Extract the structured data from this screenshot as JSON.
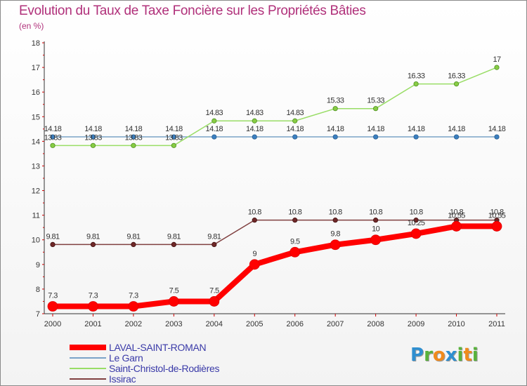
{
  "logo": {
    "text": "Proxiti",
    "letters": [
      {
        "ch": "P",
        "color": "#2f8fd0"
      },
      {
        "ch": "r",
        "color": "#58b23b"
      },
      {
        "ch": "o",
        "color": "#f08a1c"
      },
      {
        "ch": "x",
        "color": "#2f8fd0"
      },
      {
        "ch": "i",
        "color": "#58b23b"
      },
      {
        "ch": "t",
        "color": "#f08a1c"
      },
      {
        "ch": "i",
        "color": "#58b23b"
      }
    ]
  },
  "chart_data": {
    "type": "line",
    "title": "Evolution du Taux de Taxe Foncière sur les Propriétés Bâties",
    "subtitle": "(en %)",
    "x": [
      "2000",
      "2001",
      "2002",
      "2003",
      "2004",
      "2005",
      "2006",
      "2007",
      "2008",
      "2009",
      "2010",
      "2011"
    ],
    "y_ticks": [
      "7",
      "8",
      "9",
      "10",
      "11",
      "12",
      "13",
      "14",
      "15",
      "16",
      "17",
      "18"
    ],
    "ylim": [
      7,
      18
    ],
    "grid": false,
    "legend_position": "bottom-left",
    "series": [
      {
        "name": "LAVAL-SAINT-ROMAN",
        "color": "#ff0000",
        "values": [
          7.3,
          7.3,
          7.3,
          7.5,
          7.5,
          9,
          9.5,
          9.8,
          10,
          10.25,
          10.55,
          10.55
        ],
        "labels": [
          "7.3",
          "7.3",
          "7.3",
          "7.5",
          "7.5",
          "9",
          "9.5",
          "9.8",
          "10",
          "10.25",
          "10.55",
          "10.55"
        ]
      },
      {
        "name": "Le Garn",
        "color": "#7aa3c8",
        "values": [
          14.18,
          14.18,
          14.18,
          14.18,
          14.18,
          14.18,
          14.18,
          14.18,
          14.18,
          14.18,
          14.18,
          14.18
        ],
        "labels": [
          "14.18",
          "14.18",
          "14.18",
          "14.18",
          "14.18",
          "14.18",
          "14.18",
          "14.18",
          "14.18",
          "14.18",
          "14.18",
          "14.18"
        ]
      },
      {
        "name": "Saint-Christol-de-Rodières",
        "color": "#99dd66",
        "values": [
          13.83,
          13.83,
          13.83,
          13.83,
          14.83,
          14.83,
          14.83,
          15.33,
          15.33,
          16.33,
          16.33,
          17
        ],
        "labels": [
          "13.83",
          "13.83",
          "13.83",
          "13.83",
          "14.83",
          "14.83",
          "14.83",
          "15.33",
          "15.33",
          "16.33",
          "16.33",
          "17"
        ]
      },
      {
        "name": "Issirac",
        "color": "#804040",
        "values": [
          9.81,
          9.81,
          9.81,
          9.81,
          9.81,
          10.8,
          10.8,
          10.8,
          10.8,
          10.8,
          10.8,
          10.8
        ],
        "labels": [
          "9.81",
          "9.81",
          "9.81",
          "9.81",
          "9.81",
          "10.8",
          "10.8",
          "10.8",
          "10.8",
          "10.8",
          "10.8",
          "10.8"
        ]
      }
    ]
  }
}
